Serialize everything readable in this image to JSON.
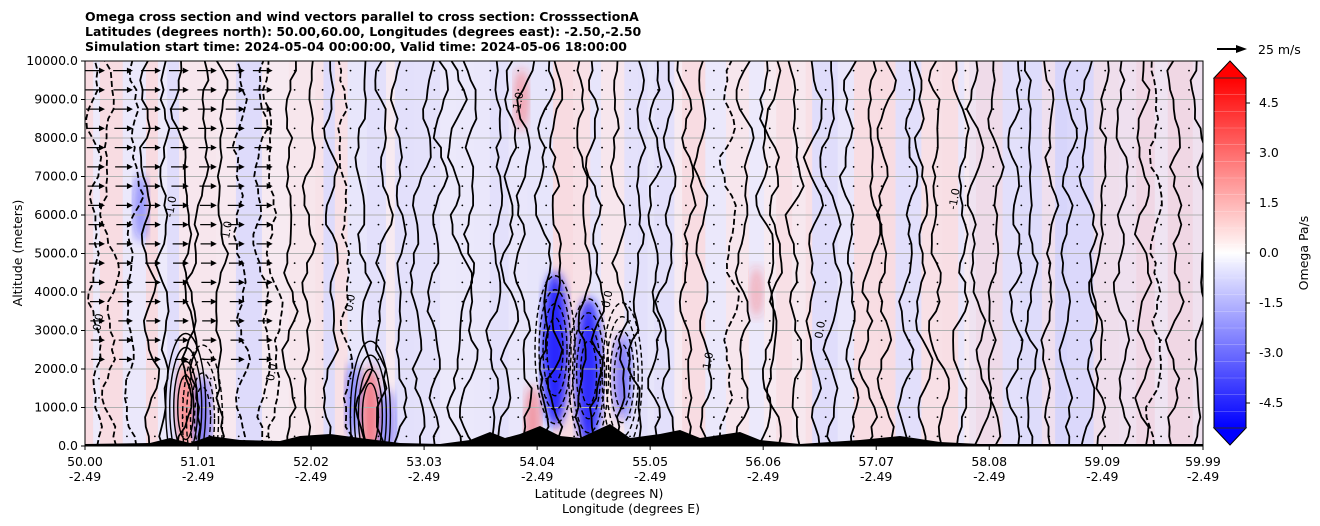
{
  "title_lines": [
    "Omega cross section and wind vectors parallel to cross section: CrosssectionA",
    "Latitudes (degrees north): 50.00,60.00, Longitudes (degrees east): -2.50,-2.50",
    "Simulation start time: 2024-05-04 00:00:00, Valid time: 2024-05-06 18:00:00"
  ],
  "quiver_key_label": "25 m/s",
  "chart_data": {
    "type": "heatmap",
    "description_kind": "filled contour cross section with contour lines and wind vectors",
    "ylabel": "Altitude (meters)",
    "xlabel_line1": "Latitude (degrees N)",
    "xlabel_line2": "Longitude (degrees E)",
    "colorbar_label": "Omega Pa/s",
    "ylim": [
      0,
      10000
    ],
    "xlim": [
      50.0,
      59.99
    ],
    "y_ticks": [
      "0.0",
      "1000.0",
      "2000.0",
      "3000.0",
      "4000.0",
      "5000.0",
      "6000.0",
      "7000.0",
      "8000.0",
      "9000.0",
      "10000.0"
    ],
    "x_ticks": [
      {
        "lat": "50.00",
        "lon": "-2.49",
        "value": 50.0
      },
      {
        "lat": "51.01",
        "lon": "-2.49",
        "value": 51.01
      },
      {
        "lat": "52.02",
        "lon": "-2.49",
        "value": 52.02
      },
      {
        "lat": "53.03",
        "lon": "-2.49",
        "value": 53.03
      },
      {
        "lat": "54.04",
        "lon": "-2.49",
        "value": 54.04
      },
      {
        "lat": "55.05",
        "lon": "-2.49",
        "value": 55.05
      },
      {
        "lat": "56.06",
        "lon": "-2.49",
        "value": 56.06
      },
      {
        "lat": "57.07",
        "lon": "-2.49",
        "value": 57.07
      },
      {
        "lat": "58.08",
        "lon": "-2.49",
        "value": 58.08
      },
      {
        "lat": "59.09",
        "lon": "-2.49",
        "value": 59.09
      },
      {
        "lat": "59.99",
        "lon": "-2.49",
        "value": 59.99
      }
    ],
    "colorbar_range": [
      -5.25,
      5.25
    ],
    "colorbar_ticks": [
      "4.5",
      "3.0",
      "1.5",
      "0.0",
      "-1.5",
      "-3.0",
      "-4.5"
    ],
    "grid": true,
    "colors": {
      "positive": "#ff0000",
      "negative": "#0000ff",
      "neutral": "#ffffff",
      "contour": "#000000"
    },
    "contour_labels": [
      "0.0",
      "-1.0",
      "1.0",
      "0.0",
      "0.0",
      "-1.0",
      "0.0",
      "1.0",
      "0.0",
      "-1.0"
    ],
    "omega_anomalies": [
      {
        "lat": 50.9,
        "alt": 1000,
        "value": 2.0
      },
      {
        "lat": 51.05,
        "alt": 700,
        "value": -2.0
      },
      {
        "lat": 52.4,
        "alt": 1200,
        "value": -1.5
      },
      {
        "lat": 52.55,
        "alt": 800,
        "value": 2.5
      },
      {
        "lat": 52.7,
        "alt": 500,
        "value": -1.5
      },
      {
        "lat": 54.2,
        "alt": 2500,
        "value": -5.0
      },
      {
        "lat": 54.0,
        "alt": 600,
        "value": 1.5
      },
      {
        "lat": 54.5,
        "alt": 1900,
        "value": -4.8
      },
      {
        "lat": 54.8,
        "alt": 1800,
        "value": -2.0
      },
      {
        "lat": 50.5,
        "alt": 6200,
        "value": -1.2
      },
      {
        "lat": 53.9,
        "alt": 9000,
        "value": 1.0
      },
      {
        "lat": 56.0,
        "alt": 4000,
        "value": 0.5
      }
    ]
  }
}
